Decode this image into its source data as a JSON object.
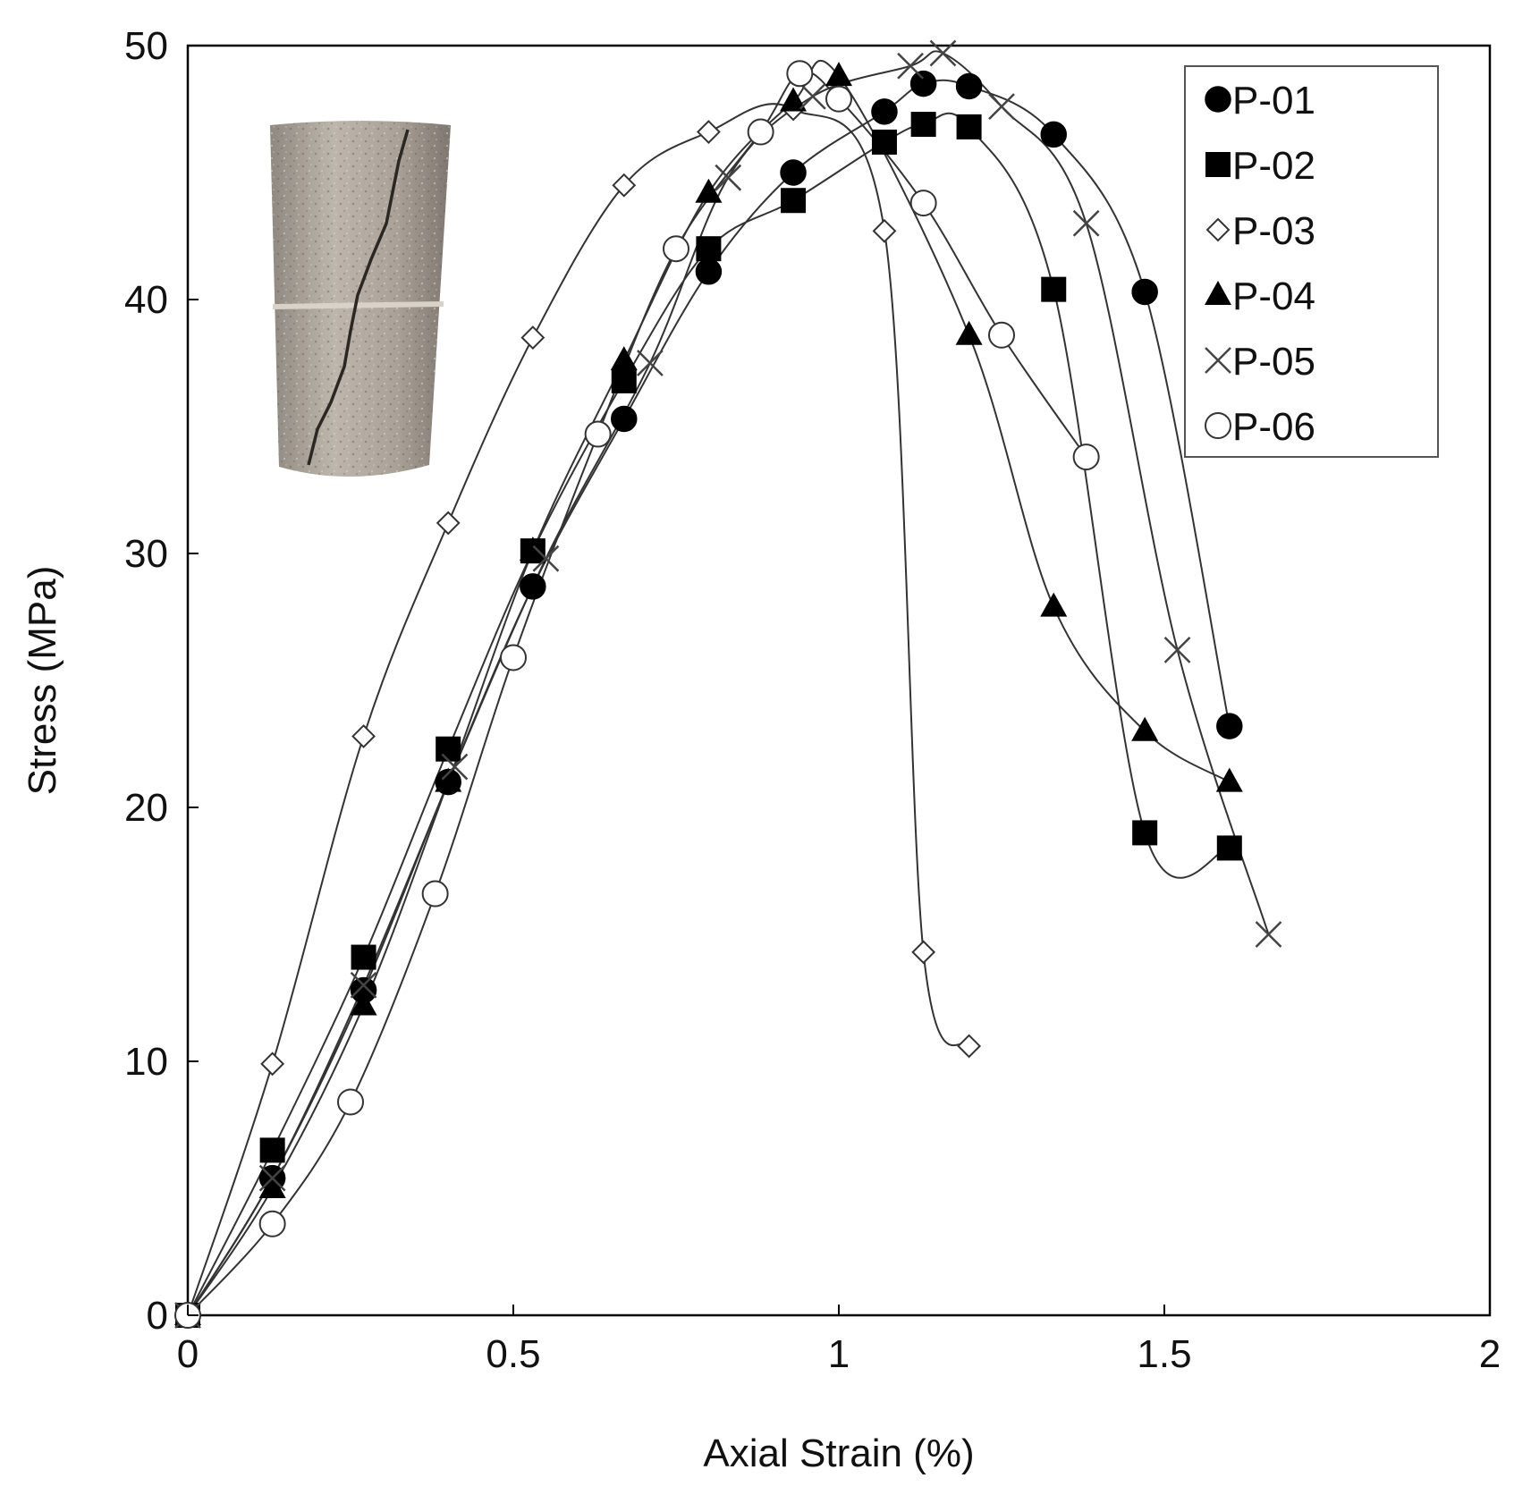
{
  "chart_data": {
    "type": "scatter",
    "title": "",
    "xlabel": "Axial Strain (%)",
    "ylabel": "Stress (MPa)",
    "xlim": [
      0,
      2
    ],
    "ylim": [
      0,
      50
    ],
    "xticks": [
      0,
      0.5,
      1,
      1.5,
      2
    ],
    "xtick_labels": [
      "0",
      "0.5",
      "1",
      "1.5",
      "2"
    ],
    "yticks": [
      0,
      10,
      20,
      30,
      40,
      50
    ],
    "ytick_labels": [
      "0",
      "10",
      "20",
      "30",
      "40",
      "50"
    ],
    "grid": false,
    "legend_position": "top-right",
    "lines": "smooth curves connecting markers",
    "inset": "photo of fractured cylindrical rock specimen (top-left)",
    "series": [
      {
        "name": "P-01",
        "marker": "filled-circle",
        "x": [
          0,
          0.13,
          0.27,
          0.4,
          0.53,
          0.67,
          0.8,
          0.93,
          1.07,
          1.13,
          1.2,
          1.33,
          1.47,
          1.6
        ],
        "y": [
          0,
          5.4,
          12.8,
          21.0,
          28.7,
          35.3,
          41.1,
          45.0,
          47.4,
          48.5,
          48.4,
          46.5,
          40.3,
          23.2
        ]
      },
      {
        "name": "P-02",
        "marker": "filled-square",
        "x": [
          0,
          0.13,
          0.27,
          0.4,
          0.53,
          0.67,
          0.8,
          0.93,
          1.07,
          1.13,
          1.2,
          1.33,
          1.47,
          1.6
        ],
        "y": [
          0,
          6.5,
          14.1,
          22.3,
          30.1,
          36.8,
          42.0,
          43.9,
          46.2,
          46.9,
          46.8,
          40.4,
          19.0,
          18.4
        ]
      },
      {
        "name": "P-03",
        "marker": "open-diamond",
        "x": [
          0,
          0.13,
          0.27,
          0.4,
          0.53,
          0.67,
          0.8,
          0.93,
          1.07,
          1.13,
          1.2
        ],
        "y": [
          0,
          9.9,
          22.8,
          31.2,
          38.5,
          44.5,
          46.6,
          47.5,
          42.7,
          14.3,
          10.6
        ]
      },
      {
        "name": "P-04",
        "marker": "filled-triangle",
        "x": [
          0,
          0.13,
          0.27,
          0.4,
          0.53,
          0.67,
          0.8,
          0.93,
          1.0,
          1.2,
          1.33,
          1.47,
          1.6
        ],
        "y": [
          0,
          5.0,
          12.2,
          21.0,
          30.1,
          37.6,
          44.2,
          47.8,
          48.8,
          38.6,
          27.9,
          23.0,
          21.0
        ]
      },
      {
        "name": "P-05",
        "marker": "cross",
        "x": [
          0,
          0.13,
          0.27,
          0.41,
          0.55,
          0.71,
          0.83,
          0.96,
          1.11,
          1.16,
          1.25,
          1.38,
          1.52,
          1.66
        ],
        "y": [
          0,
          5.4,
          13.0,
          21.6,
          29.8,
          37.5,
          44.8,
          48.0,
          49.2,
          49.7,
          47.6,
          43.0,
          26.2,
          15.0
        ]
      },
      {
        "name": "P-06",
        "marker": "open-circle",
        "x": [
          0,
          0.13,
          0.25,
          0.38,
          0.5,
          0.63,
          0.75,
          0.88,
          0.94,
          1.0,
          1.13,
          1.25,
          1.38
        ],
        "y": [
          0,
          3.6,
          8.4,
          16.6,
          25.9,
          34.7,
          42.0,
          46.6,
          48.9,
          47.9,
          43.8,
          38.6,
          33.8
        ]
      }
    ]
  }
}
